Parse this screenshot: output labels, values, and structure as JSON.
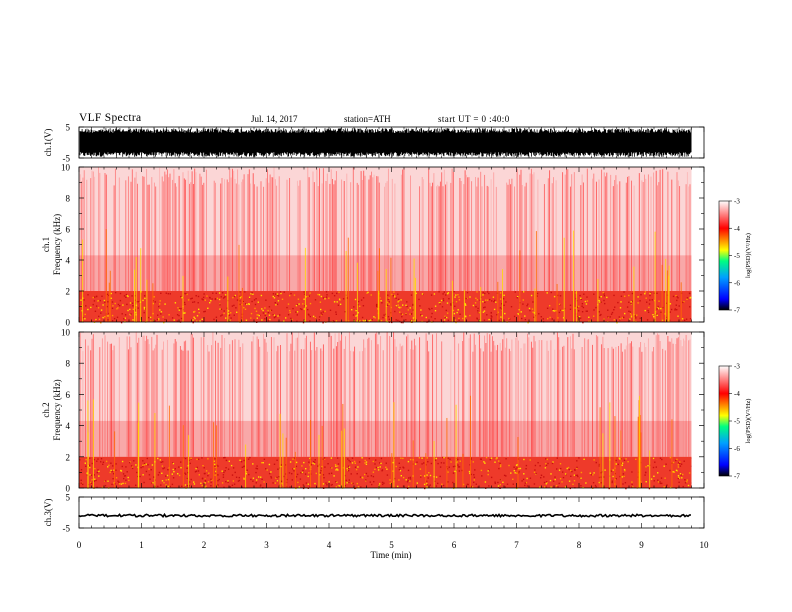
{
  "header": {
    "title": "VLF Spectra",
    "date": "Jul. 14, 2017",
    "station": "station=ATH",
    "start": "start UT = 0 :40:0"
  },
  "colors": {
    "colormap": [
      "#000000",
      "#0000ff",
      "#00a0ff",
      "#00ff80",
      "#ffff00",
      "#ff8000",
      "#ff0000",
      "#ffffff"
    ],
    "waveform": "#000000"
  },
  "chart_data": [
    {
      "type": "line",
      "ylabel": "ch.1(V)",
      "ylim": [
        -5,
        5
      ],
      "yticks": [
        "5",
        "-5"
      ],
      "xlim": [
        0,
        10
      ],
      "description_values": "dense waveform spanning nearly full range 0-9.8 min"
    },
    {
      "type": "heatmap",
      "ylabel_top": "ch.1",
      "ylabel": "Frequency (kHz)",
      "ylim": [
        0,
        10
      ],
      "yticks": [
        "0",
        "2",
        "4",
        "6",
        "8",
        "10"
      ],
      "xlim": [
        0,
        10
      ],
      "colorbar": {
        "label": "log(PSD)(V²/Hz)",
        "range": [
          -7,
          -3
        ],
        "ticks": [
          "-3",
          "-4",
          "-5",
          "-6",
          "-7"
        ]
      }
    },
    {
      "type": "heatmap",
      "ylabel_top": "ch.2",
      "ylabel": "Frequency (kHz)",
      "ylim": [
        0,
        10
      ],
      "yticks": [
        "0",
        "2",
        "4",
        "6",
        "8",
        "10"
      ],
      "xlim": [
        0,
        10
      ],
      "colorbar": {
        "label": "log(PSD)(V²/Hz)",
        "range": [
          -7,
          -3
        ],
        "ticks": [
          "-3",
          "-4",
          "-5",
          "-6",
          "-7"
        ]
      }
    },
    {
      "type": "line",
      "ylabel": "ch.3(V)",
      "ylim": [
        -5,
        5
      ],
      "yticks": [
        "5",
        "-5"
      ],
      "xlim": [
        0,
        10
      ],
      "level": -1
    }
  ],
  "xaxis": {
    "label": "Time (min)",
    "ticks": [
      "0",
      "1",
      "2",
      "3",
      "4",
      "5",
      "6",
      "7",
      "8",
      "9",
      "10"
    ],
    "data_end": 9.8
  }
}
